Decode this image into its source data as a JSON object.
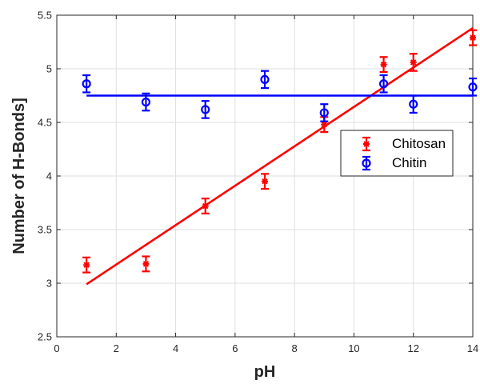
{
  "chart_data": {
    "type": "scatter",
    "xlabel": "pH",
    "ylabel": "Number of H-Bonds]",
    "xlim": [
      0,
      14
    ],
    "ylim": [
      2.5,
      5.5
    ],
    "xticks": [
      "0",
      "2",
      "4",
      "6",
      "8",
      "10",
      "12",
      "14"
    ],
    "yticks": [
      "2.5",
      "3",
      "3.5",
      "4",
      "4.5",
      "5",
      "5.5"
    ],
    "grid": true,
    "legend_position": "right",
    "series": [
      {
        "name": "Chitosan",
        "color": "#ff0000",
        "marker": "asterisk",
        "x": [
          1,
          3,
          5,
          7,
          9,
          11,
          12,
          14
        ],
        "y": [
          3.17,
          3.18,
          3.72,
          3.95,
          4.48,
          5.04,
          5.06,
          5.29
        ],
        "err": [
          0.07,
          0.07,
          0.07,
          0.07,
          0.07,
          0.07,
          0.08,
          0.07
        ],
        "fit": {
          "x": [
            1,
            14
          ],
          "y": [
            2.99,
            5.38
          ]
        }
      },
      {
        "name": "Chitin",
        "color": "#0000ff",
        "marker": "circle",
        "x": [
          1,
          3,
          5,
          7,
          9,
          11,
          12,
          14
        ],
        "y": [
          4.86,
          4.69,
          4.62,
          4.9,
          4.59,
          4.86,
          4.67,
          4.83
        ],
        "err": [
          0.08,
          0.08,
          0.08,
          0.08,
          0.08,
          0.08,
          0.08,
          0.08
        ],
        "fit": {
          "x": [
            1,
            14
          ],
          "y": [
            4.75,
            4.75
          ]
        }
      }
    ]
  }
}
